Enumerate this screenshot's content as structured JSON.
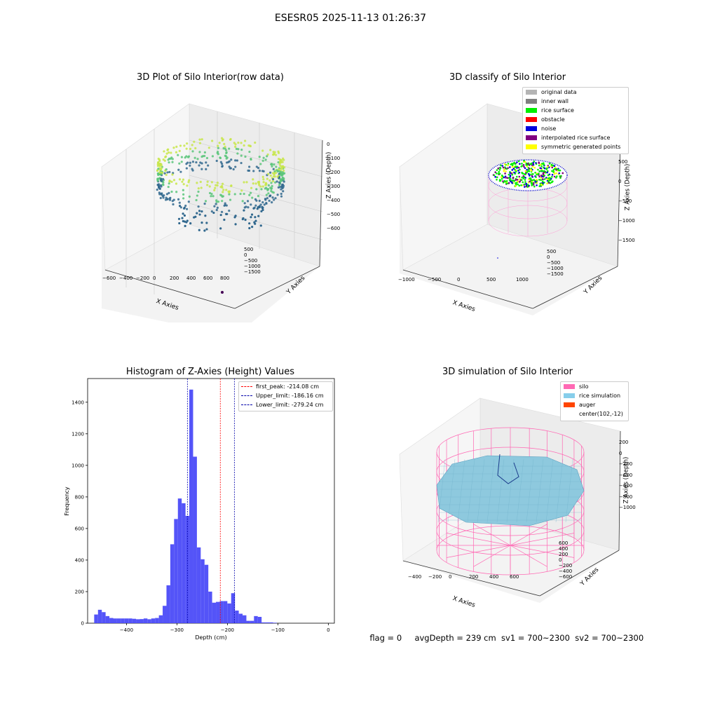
{
  "figure": {
    "title": "ESESR05 2025-11-13 01:26:37"
  },
  "footer": {
    "flag": "flag = 0",
    "avg_depth": "avgDepth = 239 cm",
    "sv1": "sv1 = 700~2300",
    "sv2": "sv2 = 700~2300"
  },
  "chart_data": [
    {
      "type": "scatter",
      "title": "3D Plot of Silo Interior(row data)",
      "xlabel": "X Axies",
      "ylabel": "Y Axies",
      "zlabel": "Z Axies (Depth)",
      "x_ticks": [
        "−600",
        "−400",
        "−200",
        "0",
        "200",
        "400",
        "600",
        "800"
      ],
      "y_ticks": [
        "500",
        "0",
        "−500",
        "−1000",
        "−1500"
      ],
      "z_ticks": [
        "0",
        "−100",
        "−200",
        "−300",
        "−400",
        "−500",
        "−600"
      ],
      "colors": {
        "high": "#c8e64a",
        "mid": "#5bc67a",
        "low": "#31688e",
        "outlier": "#440154"
      }
    },
    {
      "type": "scatter",
      "title": "3D classify of Silo Interior",
      "xlabel": "X Axies",
      "ylabel": "Y Axies",
      "zlabel": "Z Axies (Depth)",
      "x_ticks": [
        "−1000",
        "−500",
        "0",
        "500",
        "1000"
      ],
      "y_ticks": [
        "500",
        "0",
        "−500",
        "−1000",
        "−1500"
      ],
      "z_ticks": [
        "500",
        "0",
        "−500",
        "−1000",
        "−1500"
      ],
      "legend_position": "top-right",
      "legend": [
        {
          "label": "original data",
          "color": "#b4b4b4"
        },
        {
          "label": "inner wall",
          "color": "#808080"
        },
        {
          "label": "rice surface",
          "color": "#00ee00"
        },
        {
          "label": "obstacle",
          "color": "#ff0000"
        },
        {
          "label": "noise",
          "color": "#0000dd"
        },
        {
          "label": "interpolated rice surface",
          "color": "#800080"
        },
        {
          "label": "symmetric generated points",
          "color": "#ffff00"
        }
      ]
    },
    {
      "type": "bar",
      "title": "Histogram of Z-Axies (Height) Values",
      "xlabel": "Depth (cm)",
      "ylabel": "Frequency",
      "xlim": [
        -477,
        12
      ],
      "ylim": [
        0,
        1550
      ],
      "x_ticks": [
        -400,
        -300,
        -200,
        -100,
        0
      ],
      "y_ticks": [
        0,
        200,
        400,
        600,
        800,
        1000,
        1200,
        1400
      ],
      "bar_color": "#4b4bf8",
      "bin_width": 7.54,
      "bin_start": -464,
      "values": [
        55,
        85,
        70,
        45,
        33,
        30,
        30,
        30,
        30,
        30,
        28,
        25,
        26,
        30,
        25,
        30,
        33,
        50,
        110,
        240,
        500,
        660,
        790,
        760,
        680,
        1480,
        1055,
        480,
        405,
        370,
        200,
        130,
        135,
        140,
        140,
        125,
        190,
        80,
        60,
        50,
        15,
        15,
        45,
        40,
        5,
        5,
        5,
        3
      ],
      "lines": [
        {
          "label": "first_peak: -214.08 cm",
          "x": -214.08,
          "color": "#ff0000"
        },
        {
          "label": "Upper_limit: -186.16 cm",
          "x": -186.16,
          "color": "#0000aa"
        },
        {
          "label": "Lower_limit: -279.24 cm",
          "x": -279.24,
          "color": "#0000aa"
        }
      ],
      "legend_position": "top-right"
    },
    {
      "type": "scatter",
      "title": "3D simulation of Silo Interior",
      "xlabel": "X Axies",
      "ylabel": "Y Axies",
      "zlabel": "Z Axies (Depth)",
      "x_ticks": [
        "−400",
        "−200",
        "0",
        "200",
        "400",
        "600"
      ],
      "y_ticks": [
        "600",
        "400",
        "200",
        "0",
        "−200",
        "−400",
        "−600"
      ],
      "z_ticks": [
        "200",
        "0",
        "−200",
        "−400",
        "−600",
        "−800",
        "−1000"
      ],
      "legend_position": "top-right",
      "legend": [
        {
          "label": "silo",
          "color": "#ff69b4"
        },
        {
          "label": "rice simulation",
          "color": "#87ceeb"
        },
        {
          "label": "auger",
          "color": "#ff4500"
        },
        {
          "label": "center(102,-12)",
          "color": ""
        }
      ]
    }
  ]
}
